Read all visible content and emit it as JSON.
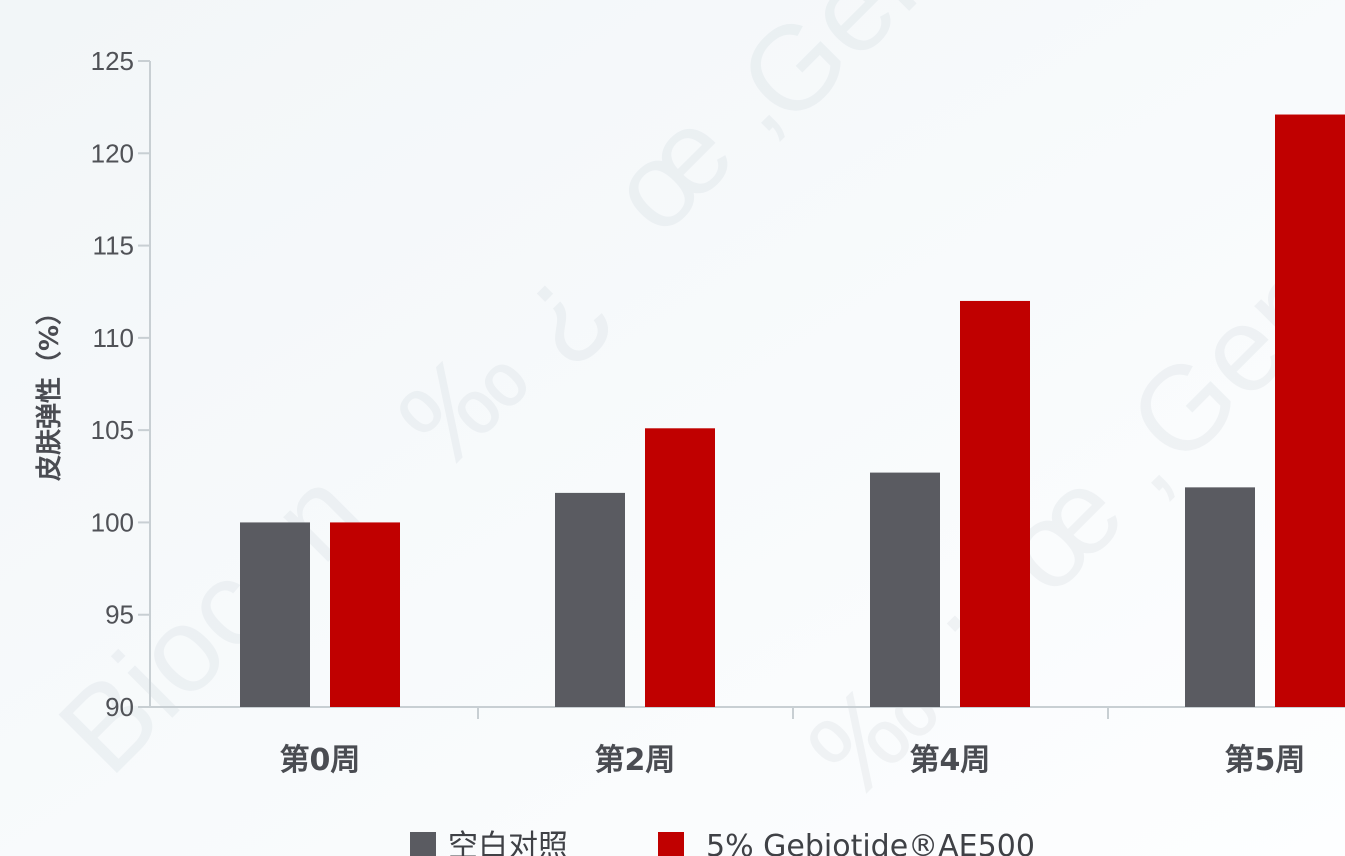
{
  "chart_data": {
    "type": "bar",
    "ylabel": "皮肤弹性（%）",
    "xlabel": "",
    "categories": [
      "第0周",
      "第2周",
      "第4周",
      "第5周"
    ],
    "series": [
      {
        "name": "空白对照",
        "values": [
          100,
          101.6,
          102.7,
          101.9
        ]
      },
      {
        "name": "5% Gebiotide®AE500",
        "values": [
          100,
          105.1,
          112.0,
          122.1
        ]
      }
    ],
    "ylim": [
      90,
      125
    ],
    "yticks": [
      90,
      95,
      100,
      105,
      110,
      115,
      120,
      125
    ],
    "grid": false,
    "legend": "bottom",
    "colors": {
      "series0": "#5a5b61",
      "series1": "#c00000",
      "axis": "#c8cfd3"
    }
  },
  "watermarks": [
    "‰ ¿",
    "œ ‚",
    "Gene",
    "Biocon"
  ]
}
